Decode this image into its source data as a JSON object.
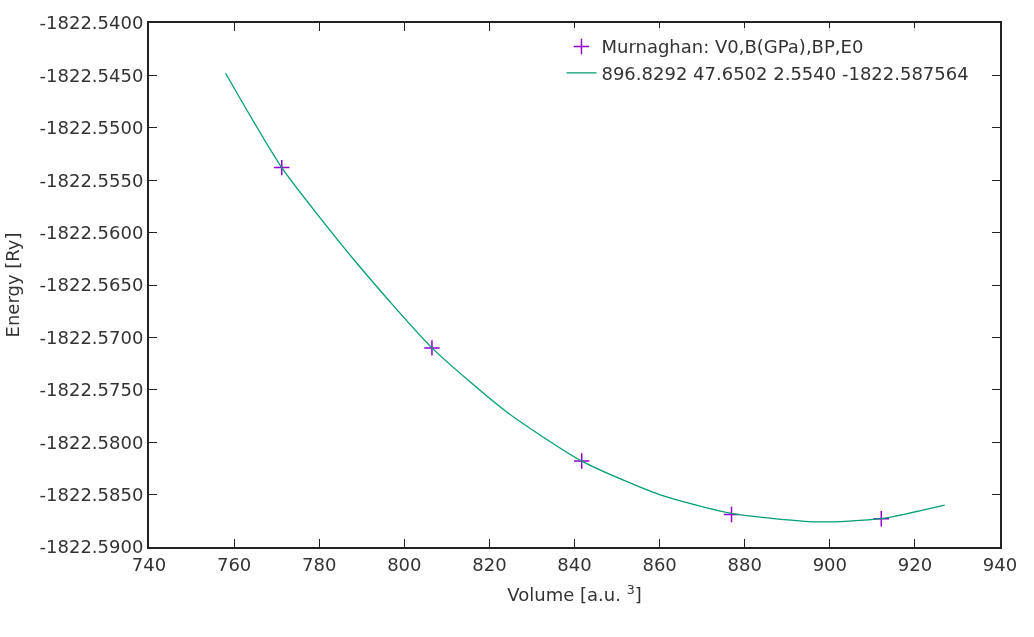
{
  "chart_data": {
    "type": "scatter",
    "xlabel": "Volume [a.u. $^{3}$]",
    "ylabel": "Energy [Ry]",
    "series": [
      {
        "name": "Murnaghan: V0,B(GPa),BP,E0",
        "marker": "cross",
        "color": "#9400d3",
        "x": [
          771.2,
          806.5,
          841.7,
          876.9,
          912.1
        ],
        "values": [
          -1822.5538,
          -1822.571,
          -1822.5818,
          -1822.5869,
          -1822.5873
        ]
      },
      {
        "name": "896.8292 47.6502 2.5540 -1822.587564",
        "type": "line",
        "marker": "none",
        "color": "#009e73",
        "x": [
          758.0,
          771.2,
          789.0,
          806.5,
          824.0,
          841.7,
          860.0,
          876.9,
          896.8,
          912.1,
          927.0
        ],
        "values": [
          -1822.5448,
          -1822.5538,
          -1822.563,
          -1822.571,
          -1822.5771,
          -1822.5818,
          -1822.585,
          -1822.5868,
          -1822.5876,
          -1822.5873,
          -1822.586
        ]
      }
    ],
    "xlim": [
      740,
      940
    ],
    "xticks": [
      740,
      760,
      780,
      800,
      820,
      840,
      860,
      880,
      900,
      920,
      940
    ],
    "ylim": [
      -1822.59,
      -1822.54
    ],
    "yticks": [
      {
        "value": -1822.59,
        "label": "-1822.5900"
      },
      {
        "value": -1822.585,
        "label": "-1822.5850"
      },
      {
        "value": -1822.58,
        "label": "-1822.5800"
      },
      {
        "value": -1822.575,
        "label": "-1822.5750"
      },
      {
        "value": -1822.57,
        "label": "-1822.5700"
      },
      {
        "value": -1822.565,
        "label": "-1822.5650"
      },
      {
        "value": -1822.56,
        "label": "-1822.5600"
      },
      {
        "value": -1822.555,
        "label": "-1822.5550"
      },
      {
        "value": -1822.55,
        "label": "-1822.5500"
      },
      {
        "value": -1822.545,
        "label": "-1822.5450"
      },
      {
        "value": -1822.54,
        "label": "-1822.5400"
      }
    ],
    "grid": false,
    "legend": "top right"
  }
}
